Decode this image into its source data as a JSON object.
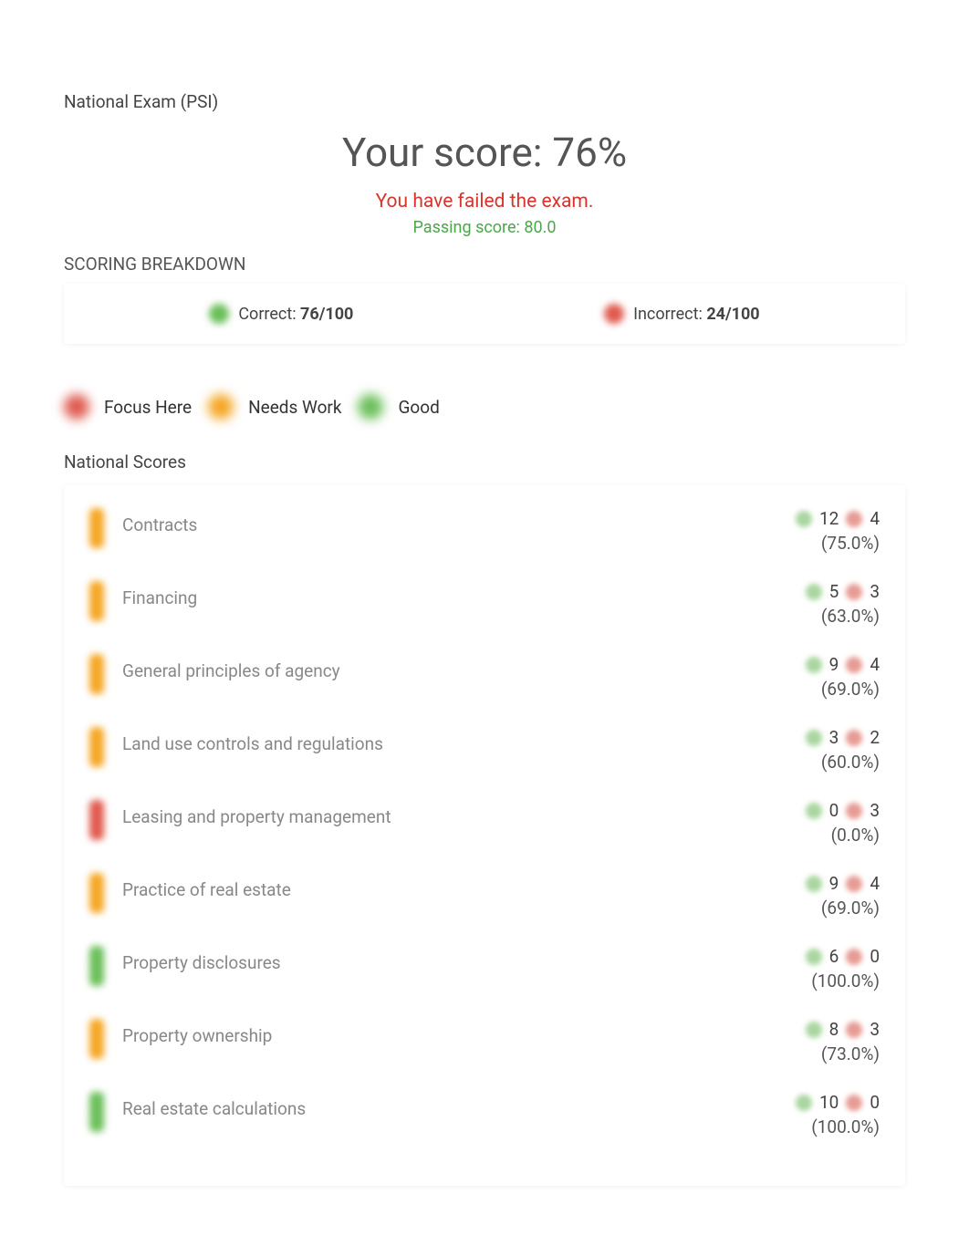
{
  "exam_name": "National Exam (PSI)",
  "score_title": "Your score: 76%",
  "fail_message": "You have failed the exam.",
  "passing_message": "Passing score: 80.0",
  "breakdown_heading": "SCORING BREAKDOWN",
  "correct_label": "Correct: ",
  "correct_value": "76/100",
  "incorrect_label": "Incorrect: ",
  "incorrect_value": "24/100",
  "legend": {
    "focus": "Focus Here",
    "needs_work": "Needs Work",
    "good": "Good"
  },
  "scores_heading": "National Scores",
  "colors": {
    "green": "#6bbf59",
    "orange": "#f5a623",
    "red": "#e05a4e",
    "green_light": "#a8d6a0",
    "red_light": "#e89b93",
    "fail_text": "#d9342b",
    "pass_text": "#4ca64c"
  },
  "topics": [
    {
      "name": "Contracts",
      "correct": "12",
      "incorrect": "4",
      "pct": "(75.0%)",
      "status": "orange"
    },
    {
      "name": "Financing",
      "correct": "5",
      "incorrect": "3",
      "pct": "(63.0%)",
      "status": "orange"
    },
    {
      "name": "General principles of agency",
      "correct": "9",
      "incorrect": "4",
      "pct": "(69.0%)",
      "status": "orange"
    },
    {
      "name": "Land use controls and regulations",
      "correct": "3",
      "incorrect": "2",
      "pct": "(60.0%)",
      "status": "orange"
    },
    {
      "name": "Leasing and property management",
      "correct": "0",
      "incorrect": "3",
      "pct": "(0.0%)",
      "status": "red"
    },
    {
      "name": "Practice of real estate",
      "correct": "9",
      "incorrect": "4",
      "pct": "(69.0%)",
      "status": "orange"
    },
    {
      "name": "Property disclosures",
      "correct": "6",
      "incorrect": "0",
      "pct": "(100.0%)",
      "status": "green"
    },
    {
      "name": "Property ownership",
      "correct": "8",
      "incorrect": "3",
      "pct": "(73.0%)",
      "status": "orange"
    },
    {
      "name": "Real estate calculations",
      "correct": "10",
      "incorrect": "0",
      "pct": "(100.0%)",
      "status": "green"
    }
  ]
}
